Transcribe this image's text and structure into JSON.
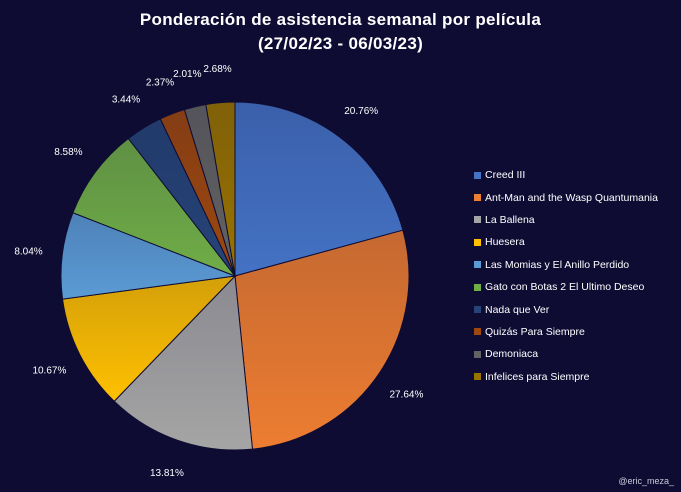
{
  "chart_data": {
    "type": "pie",
    "title": "Ponderación de asistencia semanal por película",
    "subtitle": "(27/02/23 - 06/03/23)",
    "legend_position": "right",
    "slices": [
      {
        "label": "Creed III",
        "value": 20.76,
        "value_label": "20.76%",
        "color": "#4472c4"
      },
      {
        "label": "Ant-Man and the Wasp Quantumania",
        "value": 27.64,
        "value_label": "27.64%",
        "color": "#ed7d31"
      },
      {
        "label": "La Ballena",
        "value": 13.81,
        "value_label": "13.81%",
        "color": "#a5a5a5"
      },
      {
        "label": "Huesera",
        "value": 10.67,
        "value_label": "10.67%",
        "color": "#ffc000"
      },
      {
        "label": "Las Momias y El Anillo Perdido",
        "value": 8.04,
        "value_label": "8.04%",
        "color": "#5b9bd5"
      },
      {
        "label": "Gato con Botas 2 El Ultimo Deseo",
        "value": 8.58,
        "value_label": "8.58%",
        "color": "#70ad47"
      },
      {
        "label": "Nada que Ver",
        "value": 3.44,
        "value_label": "3.44%",
        "color": "#264478"
      },
      {
        "label": "Quizás Para Siempre",
        "value": 2.37,
        "value_label": "2.37%",
        "color": "#9e480e"
      },
      {
        "label": "Demoniaca",
        "value": 2.01,
        "value_label": "2.01%",
        "color": "#636363"
      },
      {
        "label": "Infelices para Siempre",
        "value": 2.68,
        "value_label": "2.68%",
        "color": "#997300"
      }
    ]
  },
  "watermark": "@eric_meza_"
}
